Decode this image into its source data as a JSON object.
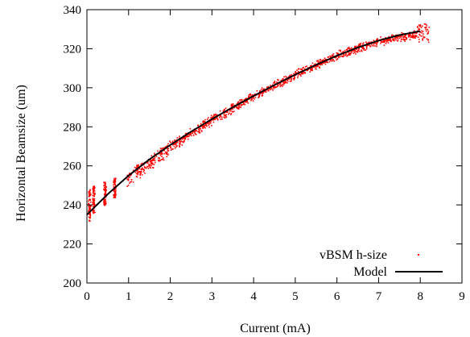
{
  "chart_data": {
    "type": "scatter",
    "xlabel": "Current (mA)",
    "ylabel": "Horizontal Beamsize (um)",
    "xlim": [
      0,
      9
    ],
    "ylim": [
      200,
      340
    ],
    "xticks": [
      0,
      1,
      2,
      3,
      4,
      5,
      6,
      7,
      8,
      9
    ],
    "yticks": [
      200,
      220,
      240,
      260,
      280,
      300,
      320,
      340
    ],
    "grid": false,
    "legend_position": "bottom-right",
    "colors": {
      "measurement": "#ff0000",
      "model": "#000000",
      "axes": "#000000"
    },
    "series": [
      {
        "name": "vBSM h-size",
        "kind": "scatter",
        "x_range": [
          0.0,
          8.2
        ],
        "clusters": [
          {
            "x": 0.05,
            "y_min": 232,
            "y_max": 248
          },
          {
            "x": 0.15,
            "y_min": 236,
            "y_max": 250
          },
          {
            "x": 0.42,
            "y_min": 240,
            "y_max": 252
          },
          {
            "x": 0.65,
            "y_min": 244,
            "y_max": 254
          }
        ],
        "trend": [
          {
            "x": 1.0,
            "y": 254
          },
          {
            "x": 2.0,
            "y": 270
          },
          {
            "x": 3.0,
            "y": 284
          },
          {
            "x": 4.0,
            "y": 296
          },
          {
            "x": 5.0,
            "y": 307
          },
          {
            "x": 6.0,
            "y": 317
          },
          {
            "x": 7.0,
            "y": 324
          },
          {
            "x": 8.0,
            "y": 328
          }
        ]
      },
      {
        "name": "Model",
        "kind": "line",
        "x": [
          0.0,
          0.5,
          1.0,
          1.5,
          2.0,
          2.5,
          3.0,
          3.5,
          4.0,
          4.5,
          5.0,
          5.5,
          6.0,
          6.5,
          7.0,
          7.5,
          8.0
        ],
        "y": [
          235.0,
          245.5,
          255.0,
          263.3,
          270.7,
          277.5,
          283.9,
          290.0,
          295.8,
          301.4,
          306.7,
          311.7,
          316.4,
          320.6,
          324.2,
          327.0,
          329.0
        ]
      }
    ]
  }
}
